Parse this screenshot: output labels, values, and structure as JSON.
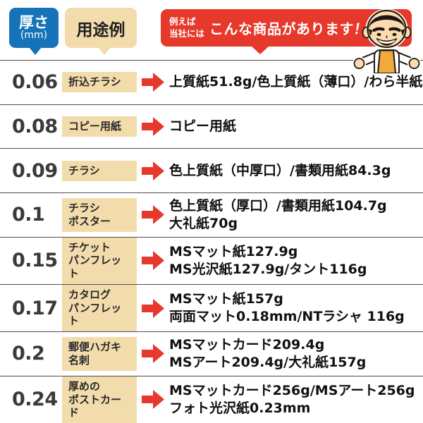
{
  "colors": {
    "blue": "#1573b9",
    "beige": "#f2dcab",
    "red": "#e6392b",
    "text-dark": "#3a3a3a",
    "text-black": "#111111",
    "line": "#4d4d4d",
    "apron": "#f2a93b",
    "skin": "#fcdcae"
  },
  "header": {
    "thickness_label": "厚さ",
    "thickness_unit": "(mm)",
    "usage_label": "用途例",
    "intro_small_line1": "例えば",
    "intro_small_line2": "当社には",
    "intro_big": "こんな商品があります",
    "intro_bang": "！"
  },
  "icons": {
    "row_arrow": "➡",
    "mascot": "smiling-shop-staff-character"
  },
  "chart_data": {
    "type": "table",
    "title": "例えば当社にはこんな商品があります！",
    "columns": [
      "厚さ(mm)",
      "用途例",
      "商品"
    ],
    "rows": [
      {
        "thickness": "0.06",
        "usage_lines": [
          "折込チラシ"
        ],
        "product_lines": [
          "上質紙51.8g/色上質紙（薄口）/わら半紙"
        ]
      },
      {
        "thickness": "0.08",
        "usage_lines": [
          "コピー用紙"
        ],
        "product_lines": [
          "コピー用紙"
        ]
      },
      {
        "thickness": "0.09",
        "usage_lines": [
          "チラシ"
        ],
        "product_lines": [
          "色上質紙（中厚口）/書類用紙84.3g"
        ]
      },
      {
        "thickness": "0.1",
        "usage_lines": [
          "チラシ",
          "ポスター"
        ],
        "product_lines": [
          "色上質紙（厚口）/書類用紙104.7g",
          "大礼紙70g"
        ]
      },
      {
        "thickness": "0.15",
        "usage_lines": [
          "チケット",
          "パンフレット"
        ],
        "product_lines": [
          "MSマット紙127.9g",
          "MS光沢紙127.9g/タント116g"
        ]
      },
      {
        "thickness": "0.17",
        "usage_lines": [
          "カタログ",
          "パンフレット"
        ],
        "product_lines": [
          "MSマット紙157g",
          "両面マット0.18mm/NTラシャ 116g"
        ]
      },
      {
        "thickness": "0.2",
        "usage_lines": [
          "郵便ハガキ",
          "名刺"
        ],
        "product_lines": [
          "MSマットカード209.4g",
          "MSアート209.4g/大礼紙157g"
        ]
      },
      {
        "thickness": "0.24",
        "usage_lines": [
          "厚めの",
          "ポストカード"
        ],
        "product_lines": [
          "MSマットカード256g/MSアート256g",
          "フォト光沢紙0.23mm"
        ]
      }
    ]
  }
}
